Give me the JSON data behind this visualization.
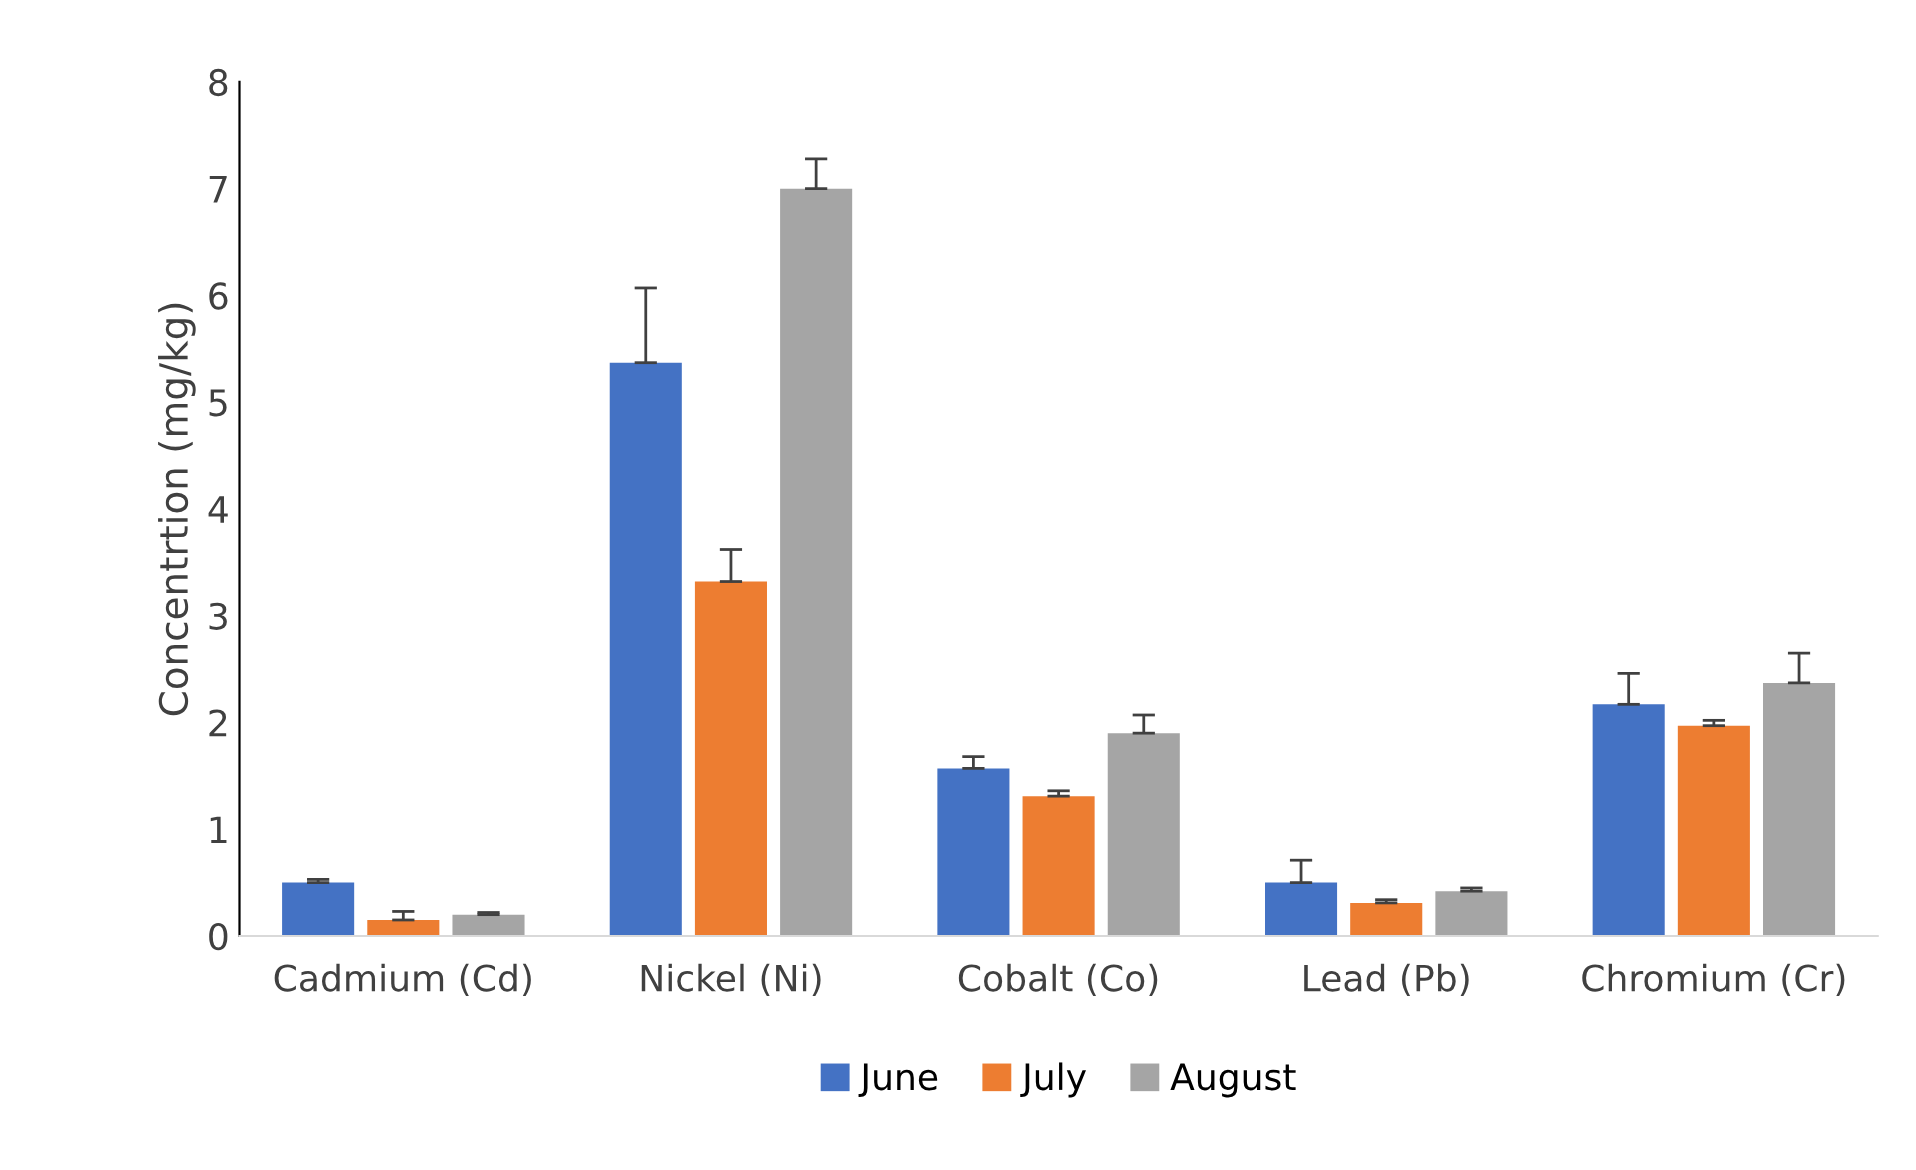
{
  "chart_data": {
    "type": "bar",
    "ylabel": "Concentrtion (mg/kg)",
    "categories": [
      "Cadmium (Cd)",
      "Nickel (Ni)",
      "Cobalt (Co)",
      "Lead (Pb)",
      "Chromium (Cr)"
    ],
    "series": [
      {
        "name": "June",
        "color": "#4472c4",
        "values": [
          0.5,
          5.37,
          1.57,
          0.5,
          2.17
        ],
        "errors": [
          [
            0.5,
            0.53
          ],
          [
            5.37,
            6.07
          ],
          [
            1.57,
            1.68
          ],
          [
            0.5,
            0.71
          ],
          [
            2.17,
            2.46
          ]
        ]
      },
      {
        "name": "July",
        "color": "#ed7d31",
        "values": [
          0.15,
          3.32,
          1.31,
          0.31,
          1.97
        ],
        "errors": [
          [
            0.15,
            0.23
          ],
          [
            3.32,
            3.62
          ],
          [
            1.31,
            1.36
          ],
          [
            0.31,
            0.34
          ],
          [
            1.97,
            2.02
          ]
        ]
      },
      {
        "name": "August",
        "color": "#a5a5a5",
        "values": [
          0.2,
          7.0,
          1.9,
          0.42,
          2.37
        ],
        "errors": [
          [
            0.2,
            0.22
          ],
          [
            7.0,
            7.28
          ],
          [
            1.9,
            2.07
          ],
          [
            0.42,
            0.45
          ],
          [
            2.37,
            2.65
          ]
        ]
      }
    ],
    "ylim": [
      0,
      8
    ],
    "yticks": [
      0,
      1,
      2,
      3,
      4,
      5,
      6,
      7,
      8
    ],
    "grid": false,
    "legend": "bottom"
  }
}
